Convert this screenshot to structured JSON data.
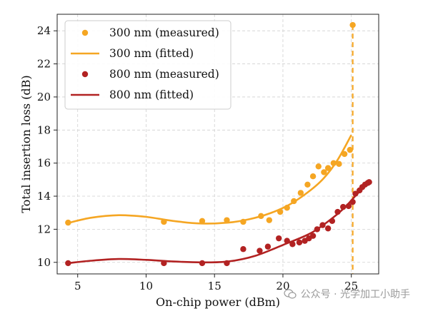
{
  "chart_data": {
    "type": "scatter",
    "xlabel": "On-chip power (dBm)",
    "ylabel": "Total insertion loss (dB)",
    "xlim": [
      3.5,
      27.0
    ],
    "ylim": [
      9.3,
      25.0
    ],
    "xticks": [
      5,
      10,
      15,
      20,
      25
    ],
    "yticks": [
      10,
      12,
      14,
      16,
      18,
      20,
      22,
      24
    ],
    "grid": true,
    "legend_position": "top-left",
    "vertical_line": {
      "x": 25.1,
      "style": "dashed",
      "color": "#f5a623"
    },
    "series": [
      {
        "name": "300 nm (measured)",
        "kind": "scatter",
        "color": "#f5a623",
        "points": [
          [
            4.3,
            12.4
          ],
          [
            11.3,
            12.45
          ],
          [
            14.1,
            12.5
          ],
          [
            15.9,
            12.55
          ],
          [
            17.1,
            12.45
          ],
          [
            18.4,
            12.8
          ],
          [
            19.0,
            12.55
          ],
          [
            19.8,
            13.05
          ],
          [
            20.3,
            13.3
          ],
          [
            20.8,
            13.7
          ],
          [
            21.3,
            14.2
          ],
          [
            21.8,
            14.7
          ],
          [
            22.2,
            15.2
          ],
          [
            22.6,
            15.8
          ],
          [
            23.0,
            15.45
          ],
          [
            23.3,
            15.7
          ],
          [
            23.7,
            16.0
          ],
          [
            24.1,
            15.95
          ],
          [
            24.5,
            16.55
          ],
          [
            24.9,
            16.8
          ],
          [
            25.1,
            24.35
          ]
        ]
      },
      {
        "name": "300 nm (fitted)",
        "kind": "line",
        "color": "#f5a623",
        "points": [
          [
            4.3,
            12.38
          ],
          [
            6.0,
            12.7
          ],
          [
            8.0,
            12.85
          ],
          [
            10.0,
            12.75
          ],
          [
            12.0,
            12.5
          ],
          [
            14.0,
            12.35
          ],
          [
            16.0,
            12.4
          ],
          [
            17.5,
            12.6
          ],
          [
            19.0,
            12.95
          ],
          [
            20.5,
            13.5
          ],
          [
            22.0,
            14.35
          ],
          [
            23.0,
            15.1
          ],
          [
            24.0,
            16.2
          ],
          [
            25.0,
            17.7
          ]
        ]
      },
      {
        "name": "800 nm (measured)",
        "kind": "scatter",
        "color": "#b22222",
        "points": [
          [
            4.3,
            9.95
          ],
          [
            11.3,
            9.95
          ],
          [
            14.1,
            9.95
          ],
          [
            15.9,
            9.95
          ],
          [
            17.1,
            10.8
          ],
          [
            18.3,
            10.7
          ],
          [
            18.9,
            10.95
          ],
          [
            19.7,
            11.45
          ],
          [
            20.3,
            11.3
          ],
          [
            20.7,
            11.1
          ],
          [
            21.2,
            11.2
          ],
          [
            21.6,
            11.3
          ],
          [
            21.9,
            11.45
          ],
          [
            22.2,
            11.6
          ],
          [
            22.5,
            12.0
          ],
          [
            22.9,
            12.25
          ],
          [
            23.3,
            12.05
          ],
          [
            23.6,
            12.5
          ],
          [
            24.0,
            13.05
          ],
          [
            24.4,
            13.35
          ],
          [
            24.8,
            13.4
          ],
          [
            25.1,
            13.65
          ],
          [
            25.3,
            14.15
          ],
          [
            25.6,
            14.35
          ],
          [
            25.8,
            14.55
          ],
          [
            26.0,
            14.7
          ],
          [
            26.2,
            14.8
          ],
          [
            26.3,
            14.85
          ]
        ]
      },
      {
        "name": "800 nm (fitted)",
        "kind": "line",
        "color": "#b22222",
        "points": [
          [
            4.3,
            9.95
          ],
          [
            6.0,
            10.1
          ],
          [
            8.0,
            10.2
          ],
          [
            10.0,
            10.15
          ],
          [
            12.0,
            10.05
          ],
          [
            14.0,
            10.0
          ],
          [
            16.0,
            10.05
          ],
          [
            18.0,
            10.4
          ],
          [
            20.0,
            11.05
          ],
          [
            22.0,
            11.75
          ],
          [
            23.5,
            12.6
          ],
          [
            24.5,
            13.3
          ],
          [
            25.5,
            14.2
          ],
          [
            26.3,
            14.8
          ]
        ]
      }
    ]
  },
  "watermark": {
    "icon": "wechat-icon",
    "text": "公众号 · 光学加工小助手"
  }
}
